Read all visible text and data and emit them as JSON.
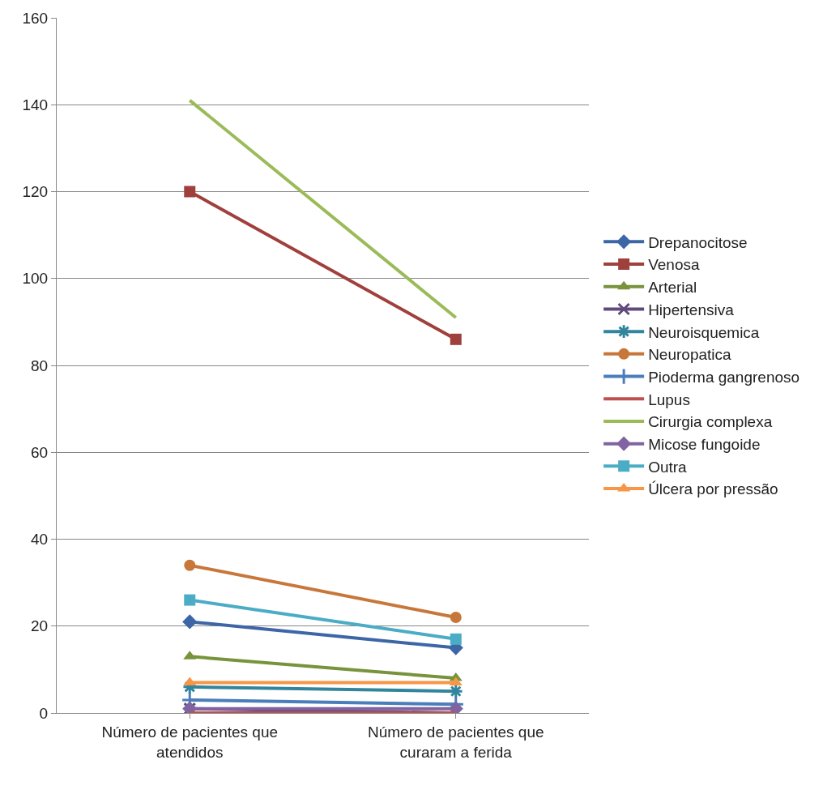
{
  "chart_data": {
    "type": "line",
    "categories": [
      "Número de pacientes que atendidos",
      "Número de pacientes que curaram a ferida"
    ],
    "ylim": [
      0,
      160
    ],
    "yticks": [
      0,
      20,
      40,
      60,
      80,
      100,
      120,
      140,
      160
    ],
    "grid": "y",
    "legend": "right",
    "series": [
      {
        "name": "Drepanocitose",
        "color": "#3d66a6",
        "marker": "diamond",
        "values": [
          21,
          15
        ]
      },
      {
        "name": "Venosa",
        "color": "#a0403d",
        "marker": "square",
        "values": [
          120,
          86
        ]
      },
      {
        "name": "Arterial",
        "color": "#77933c",
        "marker": "triangle",
        "values": [
          13,
          8
        ]
      },
      {
        "name": "Hipertensiva",
        "color": "#604a7b",
        "marker": "x",
        "values": [
          1,
          0
        ]
      },
      {
        "name": "Neuroisquemica",
        "color": "#31859c",
        "marker": "cross",
        "values": [
          6,
          5
        ]
      },
      {
        "name": "Neuropatica",
        "color": "#c8773a",
        "marker": "circle",
        "values": [
          34,
          22
        ]
      },
      {
        "name": "Pioderma gangrenoso",
        "color": "#4a7ebb",
        "marker": "cross",
        "values": [
          3,
          2
        ]
      },
      {
        "name": "Lupus",
        "color": "#c0504d",
        "marker": "none",
        "values": [
          0,
          0
        ]
      },
      {
        "name": "Cirurgia complexa",
        "color": "#9bbb59",
        "marker": "none",
        "values": [
          141,
          91
        ]
      },
      {
        "name": "Micose fungoide",
        "color": "#8064a2",
        "marker": "diamond",
        "values": [
          1,
          1
        ]
      },
      {
        "name": "Outra",
        "color": "#4bacc6",
        "marker": "square",
        "values": [
          26,
          17
        ]
      },
      {
        "name": "Úlcera por pressão",
        "color": "#f79646",
        "marker": "triangle",
        "values": [
          7,
          7
        ]
      }
    ]
  }
}
